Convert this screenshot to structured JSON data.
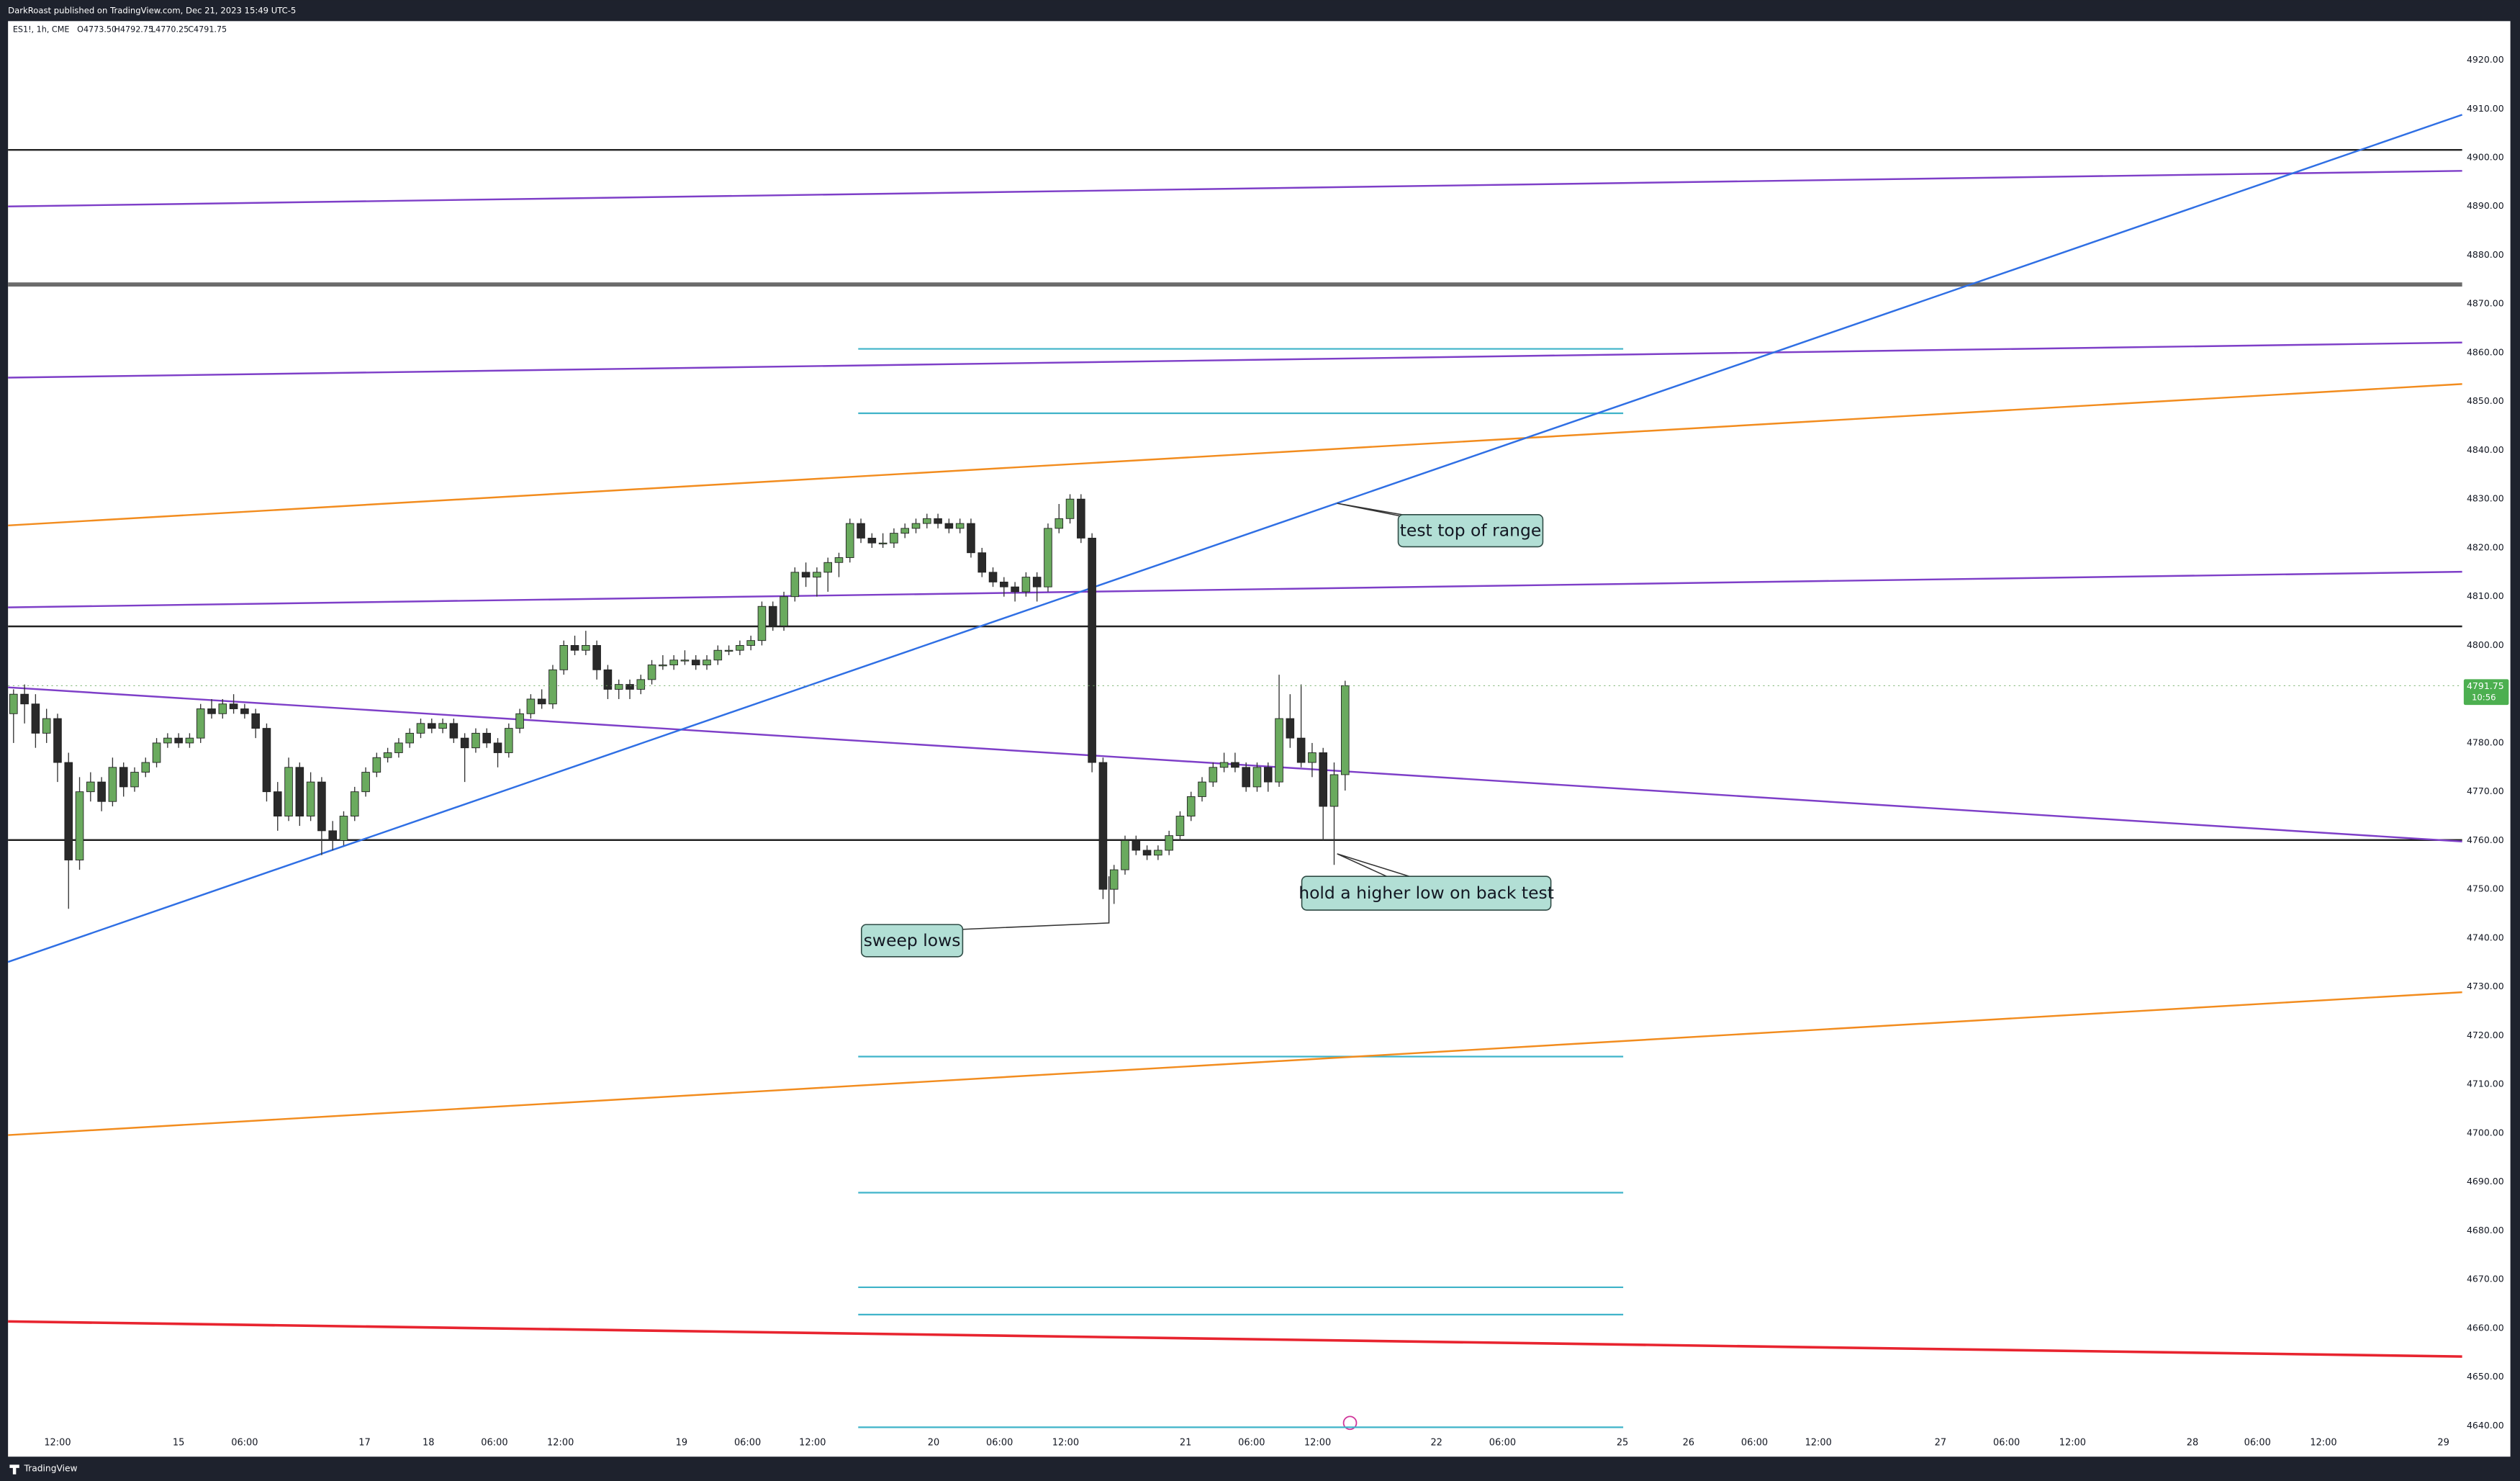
{
  "chart_data": {
    "type": "candlestick",
    "header": "DarkRoast published on TradingView.com, Dec 21, 2023 15:49 UTC-5",
    "symbol_legend": "ES1!, 1h, CME",
    "ohlc_legend": [
      "O4773.50",
      "H4792.75",
      "L4770.25",
      "C4791.75"
    ],
    "last_price_label": "4791.75",
    "countdown_label": "10:56",
    "footer": "TradingView",
    "up_color": "#6aaa5e",
    "down_color": "#2a2a2a",
    "xlim": [
      0,
      223
    ],
    "ylim": [
      4634,
      4928
    ],
    "yticks": [
      {
        "value": 4640,
        "label": "4640.00"
      },
      {
        "value": 4650,
        "label": "4650.00"
      },
      {
        "value": 4660,
        "label": "4660.00"
      },
      {
        "value": 4670,
        "label": "4670.00"
      },
      {
        "value": 4680,
        "label": "4680.00"
      },
      {
        "value": 4690,
        "label": "4690.00"
      },
      {
        "value": 4700,
        "label": "4700.00"
      },
      {
        "value": 4710,
        "label": "4710.00"
      },
      {
        "value": 4720,
        "label": "4720.00"
      },
      {
        "value": 4730,
        "label": "4730.00"
      },
      {
        "value": 4740,
        "label": "4740.00"
      },
      {
        "value": 4750,
        "label": "4750.00"
      },
      {
        "value": 4760,
        "label": "4760.00"
      },
      {
        "value": 4770,
        "label": "4770.00"
      },
      {
        "value": 4780,
        "label": "4780.00"
      },
      {
        "value": 4790,
        "label": "4790.00"
      },
      {
        "value": 4800,
        "label": "4800.00"
      },
      {
        "value": 4810,
        "label": "4810.00"
      },
      {
        "value": 4820,
        "label": "4820.00"
      },
      {
        "value": 4830,
        "label": "4830.00"
      },
      {
        "value": 4840,
        "label": "4840.00"
      },
      {
        "value": 4850,
        "label": "4850.00"
      },
      {
        "value": 4860,
        "label": "4860.00"
      },
      {
        "value": 4870,
        "label": "4870.00"
      },
      {
        "value": 4880,
        "label": "4880.00"
      },
      {
        "value": 4890,
        "label": "4890.00"
      },
      {
        "value": 4900,
        "label": "4900.00"
      },
      {
        "value": 4910,
        "label": "4910.00"
      },
      {
        "value": 4920,
        "label": "4920.00"
      }
    ],
    "xticks": [
      {
        "value": 4.5,
        "label": "12:00"
      },
      {
        "value": 15.5,
        "label": "15"
      },
      {
        "value": 21.5,
        "label": "06:00"
      },
      {
        "value": 32.4,
        "label": "17"
      },
      {
        "value": 38.2,
        "label": "18"
      },
      {
        "value": 44.2,
        "label": "06:00"
      },
      {
        "value": 50.2,
        "label": "12:00"
      },
      {
        "value": 61.2,
        "label": "19"
      },
      {
        "value": 67.2,
        "label": "06:00"
      },
      {
        "value": 73.1,
        "label": "12:00"
      },
      {
        "value": 84.1,
        "label": "20"
      },
      {
        "value": 90.1,
        "label": "06:00"
      },
      {
        "value": 96.1,
        "label": "12:00"
      },
      {
        "value": 107,
        "label": "21"
      },
      {
        "value": 113,
        "label": "06:00"
      },
      {
        "value": 119,
        "label": "12:00"
      },
      {
        "value": 129.8,
        "label": "22"
      },
      {
        "value": 135.8,
        "label": "06:00"
      },
      {
        "value": 146.7,
        "label": "25"
      },
      {
        "value": 152.7,
        "label": "26"
      },
      {
        "value": 158.7,
        "label": "06:00"
      },
      {
        "value": 164.5,
        "label": "12:00"
      },
      {
        "value": 175.6,
        "label": "27"
      },
      {
        "value": 181.6,
        "label": "06:00"
      },
      {
        "value": 187.6,
        "label": "12:00"
      },
      {
        "value": 198.5,
        "label": "28"
      },
      {
        "value": 204.4,
        "label": "06:00"
      },
      {
        "value": 210.4,
        "label": "12:00"
      },
      {
        "value": 221.3,
        "label": "29"
      }
    ],
    "candles": [
      [
        4786,
        4791,
        4780,
        4790
      ],
      [
        4790,
        4792,
        4784,
        4788
      ],
      [
        4788,
        4790,
        4779,
        4782
      ],
      [
        4782,
        4787,
        4780,
        4785
      ],
      [
        4785,
        4786,
        4772,
        4776
      ],
      [
        4776,
        4778,
        4746,
        4756
      ],
      [
        4756,
        4773,
        4754,
        4770
      ],
      [
        4770,
        4774,
        4768,
        4772
      ],
      [
        4772,
        4773,
        4766,
        4768
      ],
      [
        4768,
        4777,
        4767,
        4775
      ],
      [
        4775,
        4776,
        4769,
        4771
      ],
      [
        4771,
        4775,
        4770,
        4774
      ],
      [
        4774,
        4777,
        4773,
        4776
      ],
      [
        4776,
        4781,
        4775,
        4780
      ],
      [
        4780,
        4782,
        4779,
        4781
      ],
      [
        4781,
        4782,
        4779,
        4780
      ],
      [
        4780,
        4782,
        4779,
        4781
      ],
      [
        4781,
        4788,
        4780,
        4787
      ],
      [
        4787,
        4789,
        4785,
        4786
      ],
      [
        4786,
        4789,
        4785,
        4788
      ],
      [
        4788,
        4790,
        4786,
        4787
      ],
      [
        4787,
        4788,
        4785,
        4786
      ],
      [
        4786,
        4787,
        4781,
        4783
      ],
      [
        4783,
        4784,
        4768,
        4770
      ],
      [
        4770,
        4772,
        4762,
        4765
      ],
      [
        4765,
        4777,
        4764,
        4775
      ],
      [
        4775,
        4776,
        4763,
        4765
      ],
      [
        4765,
        4774,
        4764,
        4772
      ],
      [
        4772,
        4773,
        4757,
        4762
      ],
      [
        4762,
        4764,
        4758,
        4760
      ],
      [
        4760,
        4766,
        4759,
        4765
      ],
      [
        4765,
        4771,
        4764,
        4770
      ],
      [
        4770,
        4775,
        4769,
        4774
      ],
      [
        4774,
        4778,
        4773,
        4777
      ],
      [
        4777,
        4779,
        4776,
        4778
      ],
      [
        4778,
        4781,
        4777,
        4780
      ],
      [
        4780,
        4783,
        4779,
        4782
      ],
      [
        4782,
        4785,
        4781,
        4784
      ],
      [
        4784,
        4785,
        4782,
        4783
      ],
      [
        4783,
        4785,
        4782,
        4784
      ],
      [
        4784,
        4785,
        4780,
        4781
      ],
      [
        4781,
        4782,
        4772,
        4779
      ],
      [
        4779,
        4783,
        4778,
        4782
      ],
      [
        4782,
        4783,
        4779,
        4780
      ],
      [
        4780,
        4781,
        4775,
        4778
      ],
      [
        4778,
        4784,
        4777,
        4783
      ],
      [
        4783,
        4787,
        4782,
        4786
      ],
      [
        4786,
        4790,
        4785,
        4789
      ],
      [
        4789,
        4791,
        4787,
        4788
      ],
      [
        4788,
        4796,
        4787,
        4795
      ],
      [
        4795,
        4801,
        4794,
        4800
      ],
      [
        4800,
        4802,
        4798,
        4799
      ],
      [
        4799,
        4803,
        4798,
        4800
      ],
      [
        4800,
        4801,
        4793,
        4795
      ],
      [
        4795,
        4796,
        4789,
        4791
      ],
      [
        4791,
        4793,
        4789,
        4792
      ],
      [
        4792,
        4793,
        4789,
        4791
      ],
      [
        4791,
        4794,
        4790,
        4793
      ],
      [
        4793,
        4797,
        4792,
        4796
      ],
      [
        4796,
        4798,
        4795,
        4796
      ],
      [
        4796,
        4798,
        4795,
        4797
      ],
      [
        4797,
        4799,
        4796,
        4797
      ],
      [
        4797,
        4798,
        4795,
        4796
      ],
      [
        4796,
        4798,
        4795,
        4797
      ],
      [
        4797,
        4800,
        4796,
        4799
      ],
      [
        4799,
        4800,
        4798,
        4799
      ],
      [
        4799,
        4801,
        4798,
        4800
      ],
      [
        4800,
        4802,
        4799,
        4801
      ],
      [
        4801,
        4809,
        4800,
        4808
      ],
      [
        4808,
        4809,
        4803,
        4804
      ],
      [
        4804,
        4811,
        4803,
        4810
      ],
      [
        4810,
        4816,
        4809,
        4815
      ],
      [
        4815,
        4817,
        4812,
        4814
      ],
      [
        4814,
        4816,
        4810,
        4815
      ],
      [
        4815,
        4818,
        4811,
        4817
      ],
      [
        4817,
        4819,
        4814,
        4818
      ],
      [
        4818,
        4826,
        4817,
        4825
      ],
      [
        4825,
        4826,
        4821,
        4822
      ],
      [
        4822,
        4823,
        4820,
        4821
      ],
      [
        4821,
        4823,
        4820,
        4821
      ],
      [
        4821,
        4824,
        4820,
        4823
      ],
      [
        4823,
        4825,
        4822,
        4824
      ],
      [
        4824,
        4826,
        4823,
        4825
      ],
      [
        4825,
        4827,
        4824,
        4826
      ],
      [
        4826,
        4827,
        4824,
        4825
      ],
      [
        4825,
        4826,
        4823,
        4824
      ],
      [
        4824,
        4826,
        4823,
        4825
      ],
      [
        4825,
        4826,
        4818,
        4819
      ],
      [
        4819,
        4820,
        4814,
        4815
      ],
      [
        4815,
        4816,
        4812,
        4813
      ],
      [
        4813,
        4814,
        4810,
        4812
      ],
      [
        4812,
        4813,
        4809,
        4811
      ],
      [
        4811,
        4815,
        4810,
        4814
      ],
      [
        4814,
        4815,
        4809,
        4812
      ],
      [
        4812,
        4825,
        4811,
        4824
      ],
      [
        4824,
        4829,
        4823,
        4826
      ],
      [
        4826,
        4831,
        4825,
        4830
      ],
      [
        4830,
        4831,
        4821,
        4822
      ],
      [
        4822,
        4823,
        4774,
        4776
      ],
      [
        4776,
        4777,
        4748,
        4750
      ],
      [
        4750,
        4755,
        4747,
        4754
      ],
      [
        4754,
        4761,
        4753,
        4760
      ],
      [
        4760,
        4761,
        4757,
        4758
      ],
      [
        4758,
        4759,
        4756,
        4757
      ],
      [
        4757,
        4759,
        4756,
        4758
      ],
      [
        4758,
        4762,
        4757,
        4761
      ],
      [
        4761,
        4766,
        4760,
        4765
      ],
      [
        4765,
        4770,
        4764,
        4769
      ],
      [
        4769,
        4773,
        4768,
        4772
      ],
      [
        4772,
        4776,
        4771,
        4775
      ],
      [
        4775,
        4778,
        4774,
        4776
      ],
      [
        4776,
        4778,
        4774,
        4775
      ],
      [
        4775,
        4776,
        4770,
        4771
      ],
      [
        4771,
        4776,
        4770,
        4775
      ],
      [
        4775,
        4776,
        4770,
        4772
      ],
      [
        4772,
        4794,
        4771,
        4785
      ],
      [
        4785,
        4790,
        4779,
        4781
      ],
      [
        4781,
        4792,
        4775,
        4776
      ],
      [
        4776,
        4780,
        4773,
        4778
      ],
      [
        4778,
        4779,
        4760,
        4767
      ],
      [
        4767,
        4776,
        4755,
        4773.5
      ],
      [
        4773.5,
        4792.75,
        4770.25,
        4791.75
      ]
    ],
    "trend_lines": [
      {
        "color": "#7e3fc8",
        "start": 4890,
        "end": 4897.3
      },
      {
        "color": "#7e3fc8",
        "start": 4854.9,
        "end": 4862.1
      },
      {
        "color": "#f28c1e",
        "start": 4824.6,
        "end": 4853.6
      },
      {
        "color": "#7e3fc8",
        "start": 4807.8,
        "end": 4815.1
      },
      {
        "color": "#7e3fc8",
        "start": 4791.4,
        "end": 4759.8
      },
      {
        "color": "#2f6fe4",
        "start": 4735.1,
        "end": 4908.8
      },
      {
        "color": "#f28c1e",
        "start": 4699.6,
        "end": 4728.9
      },
      {
        "color": "#e8242f",
        "start": 4661.4,
        "end": 4654.2
      }
    ],
    "horizontal_lines": [
      {
        "color": "#222222",
        "level": 4901.6,
        "style": "thin"
      },
      {
        "color": "#6b6b6b",
        "level": 4874,
        "style": "thick"
      },
      {
        "color": "#222222",
        "level": 4803.9,
        "style": "thin"
      },
      {
        "color": "#222222",
        "level": 4760.1,
        "style": "thin"
      }
    ],
    "range_levels": {
      "color": "#3fb3c9",
      "levels": [
        4860.8,
        4847.6,
        4715.7,
        4687.8,
        4668.4,
        4662.8,
        4639.7
      ]
    },
    "annotations": [
      "test top of range",
      "hold a higher low on back test",
      "sweep lows"
    ]
  }
}
